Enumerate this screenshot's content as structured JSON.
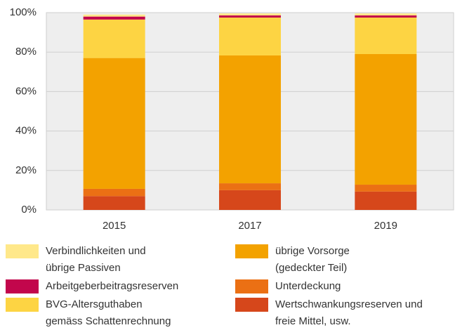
{
  "chart_data": {
    "type": "stacked_bar",
    "categories": [
      "2015",
      "2017",
      "2019"
    ],
    "series": [
      {
        "name": "Wertschwankungsreserven und\nfreie Mittel, usw.",
        "color": "#d6471b",
        "values": [
          7,
          10,
          9.3
        ]
      },
      {
        "name": "Unterdeckung",
        "color": "#eb7014",
        "values": [
          3.7,
          3.5,
          3.5
        ]
      },
      {
        "name": "übrige Vorsorge\n(gedeckter Teil)",
        "color": "#f3a200",
        "values": [
          66.3,
          64.8,
          66.2
        ]
      },
      {
        "name": "BVG-Altersguthaben\ngemäss Schattenrechnung",
        "color": "#fdd443",
        "values": [
          19.5,
          19.2,
          18.5
        ]
      },
      {
        "name": "Arbeitgeberbeitragsreserven",
        "color": "#c2064c",
        "values": [
          1.5,
          1.1,
          1.1
        ]
      },
      {
        "name": "Verbindlichkeiten und\nübrige Passiven",
        "color": "#ffe88a",
        "values": [
          1,
          1,
          1
        ]
      }
    ],
    "ylim": [
      0,
      100
    ],
    "yticks": [
      {
        "value": 0,
        "label": "0%"
      },
      {
        "value": 20,
        "label": "20%"
      },
      {
        "value": 40,
        "label": "40%"
      },
      {
        "value": 60,
        "label": "60%"
      },
      {
        "value": 80,
        "label": "80%"
      },
      {
        "value": 100,
        "label": "100%"
      }
    ],
    "grid": true
  }
}
